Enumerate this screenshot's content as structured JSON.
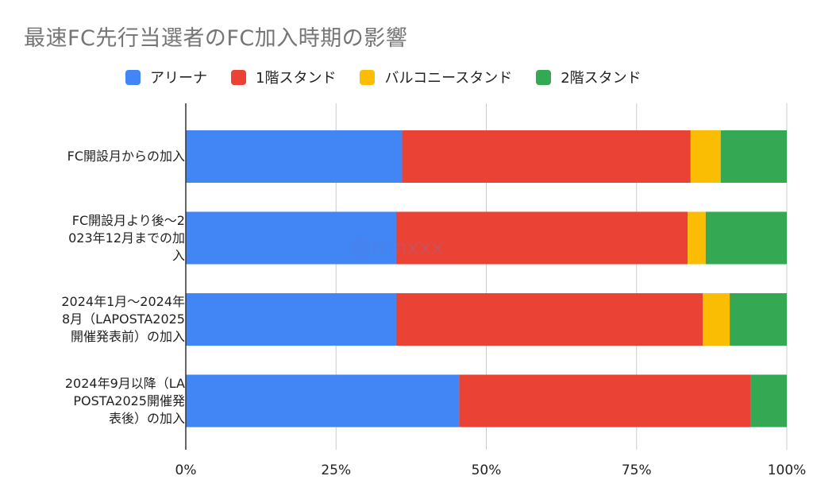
{
  "chart_data": {
    "type": "bar",
    "orientation": "horizontal",
    "stacked": "percent",
    "title": "最速FC先行当選者のFC加入時期の影響",
    "categories": [
      "FC開設月からの加入",
      "FC開設月より後〜2023年12月までの加入",
      "2024年1月〜2024年8月（LAPOSTA2025開催発表前）の加入",
      "2024年9月以降（LAPOSTA2025開催発表後）の加入"
    ],
    "category_lines": [
      [
        "FC開設月からの加入"
      ],
      [
        "FC開設月より後〜2",
        "023年12月までの加",
        "入"
      ],
      [
        "2024年1月〜2024年",
        "8月（LAPOSTA2025",
        "開催発表前）の加入"
      ],
      [
        "2024年9月以降（LA",
        "POSTA2025開催発",
        "表後）の加入"
      ]
    ],
    "series": [
      {
        "name": "アリーナ",
        "color": "#4285F4",
        "values": [
          36,
          35,
          35,
          45.5
        ]
      },
      {
        "name": "1階スタンド",
        "color": "#EA4335",
        "values": [
          48,
          48.5,
          51,
          48.5
        ]
      },
      {
        "name": "バルコニースタンド",
        "color": "#FBBC04",
        "values": [
          5,
          3,
          4.5,
          0
        ]
      },
      {
        "name": "2階スタンド",
        "color": "#34A853",
        "values": [
          11,
          13.5,
          9.5,
          6
        ]
      }
    ],
    "xticks": [
      "0%",
      "25%",
      "50%",
      "75%",
      "100%"
    ],
    "xlim": [
      0,
      100
    ],
    "grid": true,
    "legend": "top"
  },
  "watermark": "@rrinxxx"
}
